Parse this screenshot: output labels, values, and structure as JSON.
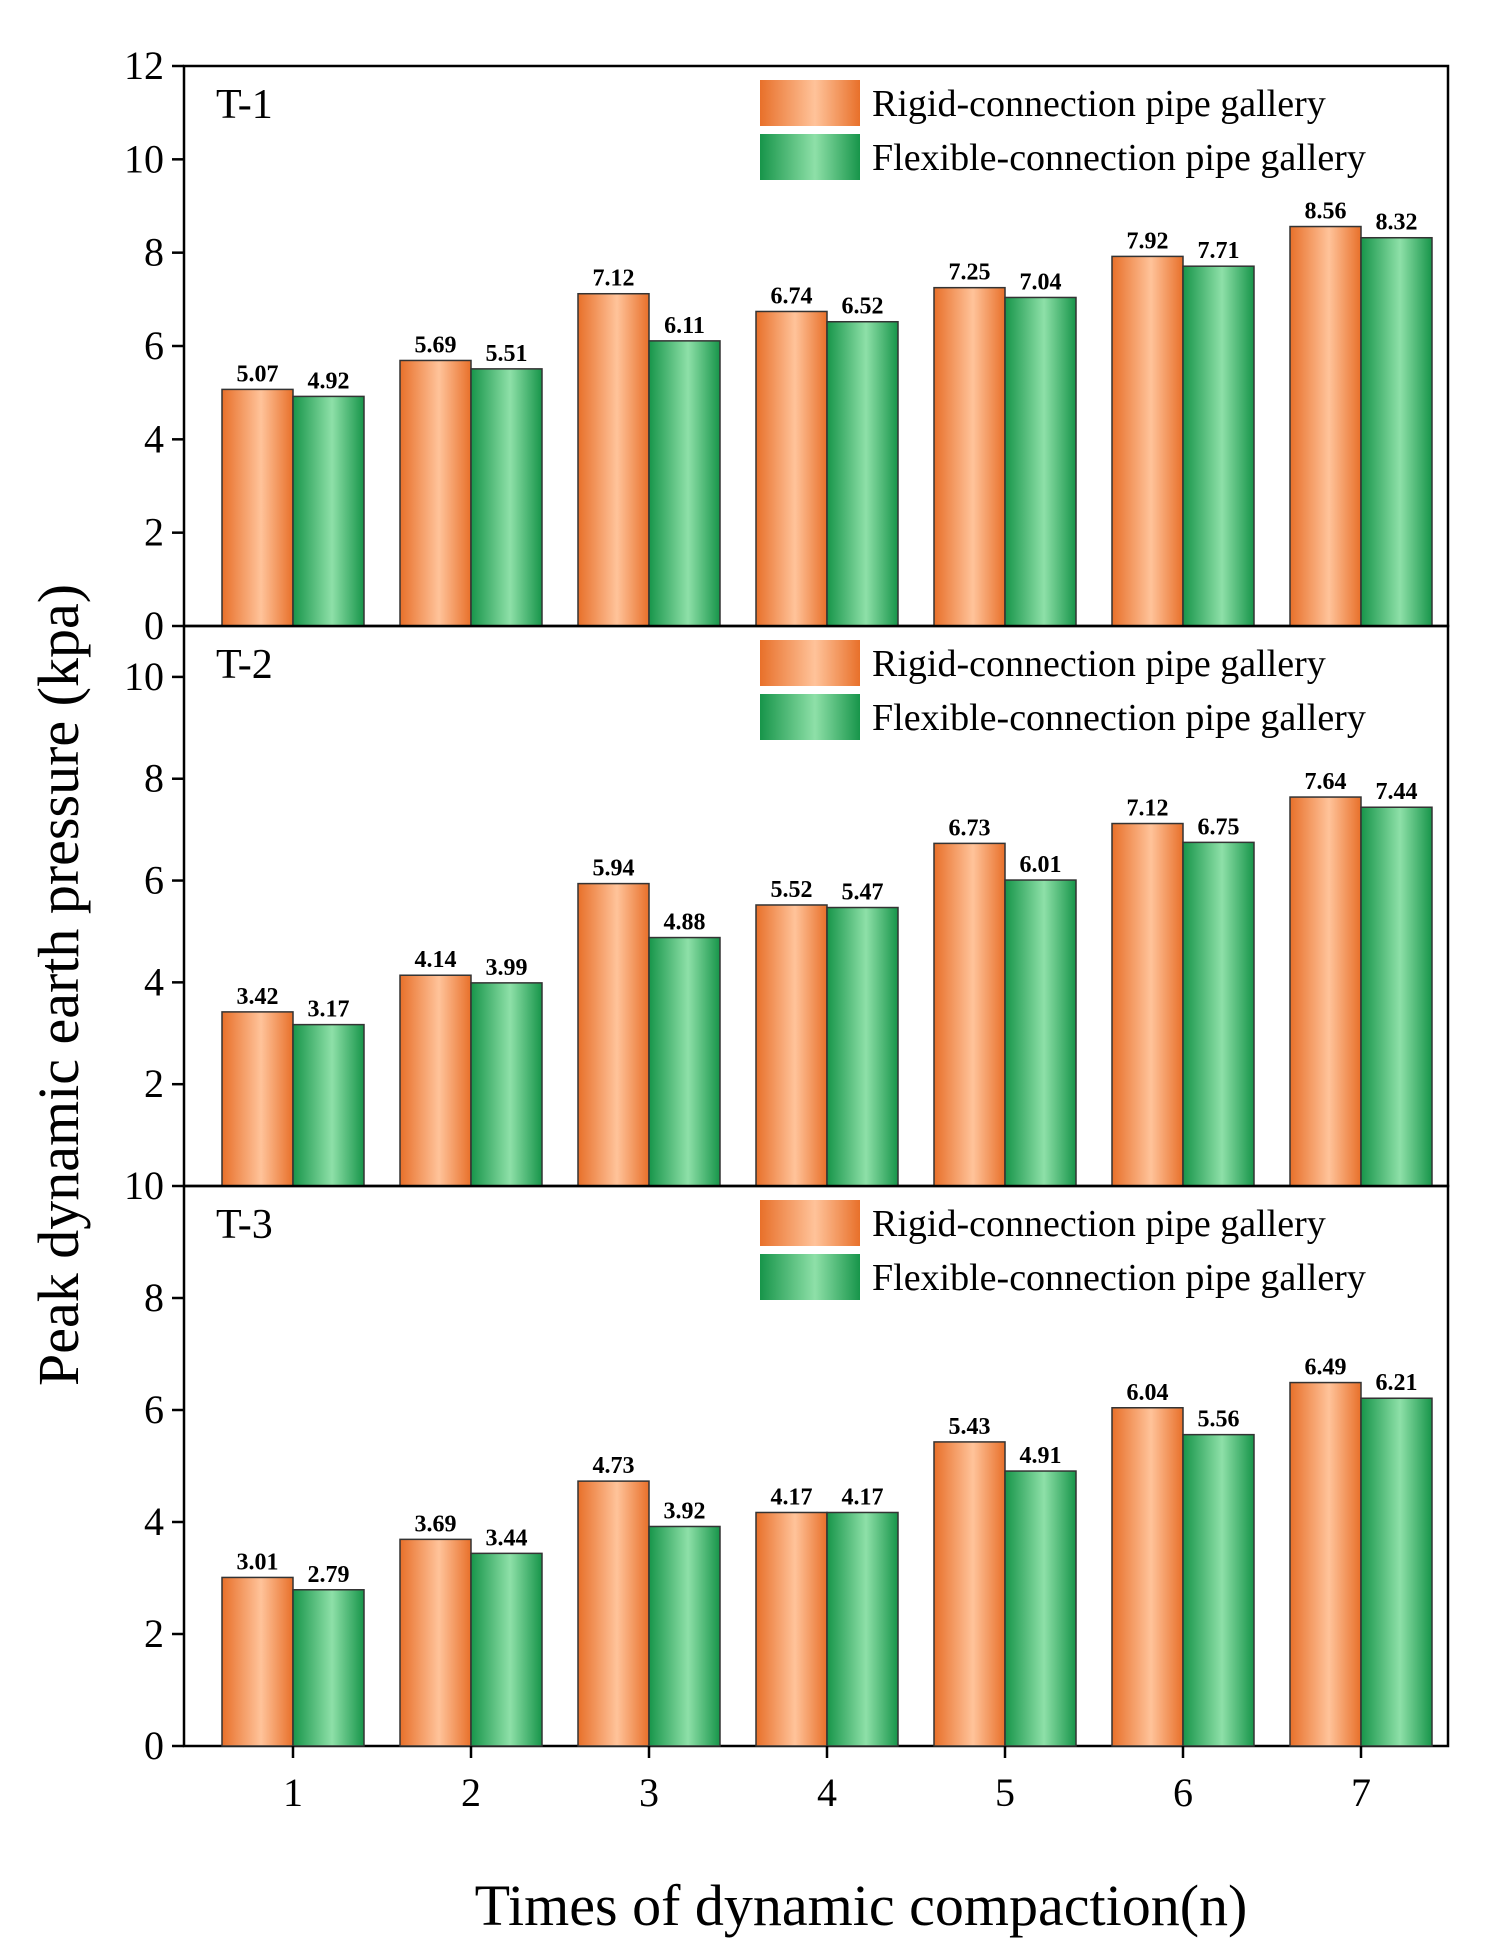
{
  "chart_data": {
    "type": "bar",
    "xlabel": "Times of dynamic compaction(n)",
    "ylabel": "Peak dynamic earth pressure (kpa)",
    "categories": [
      "1",
      "2",
      "3",
      "4",
      "5",
      "6",
      "7"
    ],
    "colors": {
      "rigid_dark": "#e8702a",
      "rigid_light": "#ffc39a",
      "flexible_dark": "#17954a",
      "flexible_light": "#8ee0a8"
    },
    "panels": [
      {
        "label": "T-1",
        "ylim": [
          0,
          12
        ],
        "yticks": [
          0,
          2,
          4,
          6,
          8,
          10,
          12
        ],
        "legend": [
          "Rigid-connection pipe gallery",
          "Flexible-connection pipe gallery"
        ],
        "series": [
          {
            "name": "Rigid-connection pipe gallery",
            "values": [
              5.07,
              5.69,
              7.12,
              6.74,
              7.25,
              7.92,
              8.56
            ],
            "labels": [
              "5.07",
              "5.69",
              "7.12",
              "6.74",
              "7.25",
              "7.92",
              "8.56"
            ]
          },
          {
            "name": "Flexible-connection pipe gallery",
            "values": [
              4.92,
              5.51,
              6.11,
              6.52,
              7.04,
              7.71,
              8.32
            ],
            "labels": [
              "4.92",
              "5.51",
              "6.11",
              "6.52",
              "7.04",
              "7.71",
              "8.32"
            ]
          }
        ]
      },
      {
        "label": "T-2",
        "ylim": [
          0,
          11
        ],
        "yticks": [
          2,
          4,
          6,
          8,
          10
        ],
        "legend": [
          "Rigid-connection pipe gallery",
          "Flexible-connection pipe gallery"
        ],
        "series": [
          {
            "name": "Rigid-connection pipe gallery",
            "values": [
              3.42,
              4.14,
              5.94,
              5.52,
              6.73,
              7.12,
              7.64
            ],
            "labels": [
              "3.42",
              "4.14",
              "5.94",
              "5.52",
              "6.73",
              "7.12",
              "7.64"
            ]
          },
          {
            "name": "Flexible-connection pipe gallery",
            "values": [
              3.17,
              3.99,
              4.88,
              5.47,
              6.01,
              6.75,
              7.44
            ],
            "labels": [
              "3.17",
              "3.99",
              "4.88",
              "5.47",
              "6.01",
              "6.75",
              "7.44"
            ]
          }
        ]
      },
      {
        "label": "T-3",
        "ylim": [
          0,
          10
        ],
        "yticks": [
          0,
          2,
          4,
          6,
          8,
          10
        ],
        "legend": [
          "Rigid-connection pipe gallery",
          "Flexible-connection pipe gallery"
        ],
        "series": [
          {
            "name": "Rigid-connection pipe gallery",
            "values": [
              3.01,
              3.69,
              4.73,
              4.17,
              5.43,
              6.04,
              6.49
            ],
            "labels": [
              "3.01",
              "3.69",
              "4.73",
              "4.17",
              "5.43",
              "6.04",
              "6.49"
            ]
          },
          {
            "name": "Flexible-connection pipe gallery",
            "values": [
              2.79,
              3.44,
              3.92,
              4.17,
              4.91,
              5.56,
              6.21
            ],
            "labels": [
              "2.79",
              "3.44",
              "3.92",
              "4.17",
              "4.91",
              "5.56",
              "6.21"
            ]
          }
        ]
      }
    ]
  }
}
